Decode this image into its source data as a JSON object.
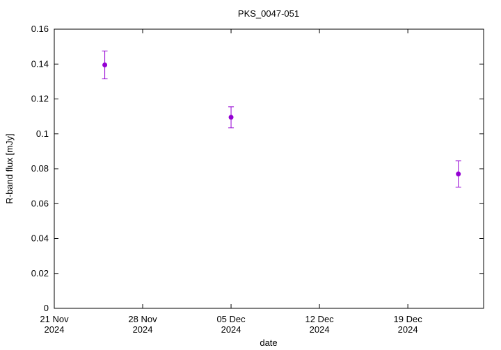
{
  "chart_data": {
    "type": "scatter",
    "title": "PKS_0047-051",
    "xlabel": "date",
    "ylabel": "R-band flux [mJy]",
    "x": [
      "2024-11-25",
      "2024-12-05",
      "2024-12-23"
    ],
    "series": [
      {
        "color": "#9400d3",
        "values": [
          0.1395,
          0.1095,
          0.077
        ],
        "errors": [
          0.008,
          0.006,
          0.0075
        ]
      }
    ],
    "xlim": [
      "2024-11-21",
      "2024-12-25"
    ],
    "xticks": [
      {
        "value": "2024-11-21",
        "label": "21 Nov 2024"
      },
      {
        "value": "2024-11-28",
        "label": "28 Nov 2024"
      },
      {
        "value": "2024-12-05",
        "label": "05 Dec 2024"
      },
      {
        "value": "2024-12-12",
        "label": "12 Dec 2024"
      },
      {
        "value": "2024-12-19",
        "label": "19 Dec 2024"
      }
    ],
    "ylim": [
      0,
      0.16
    ],
    "yticks": [
      0,
      0.02,
      0.04,
      0.06,
      0.08,
      0.1,
      0.12,
      0.14,
      0.16
    ],
    "grid": false
  }
}
